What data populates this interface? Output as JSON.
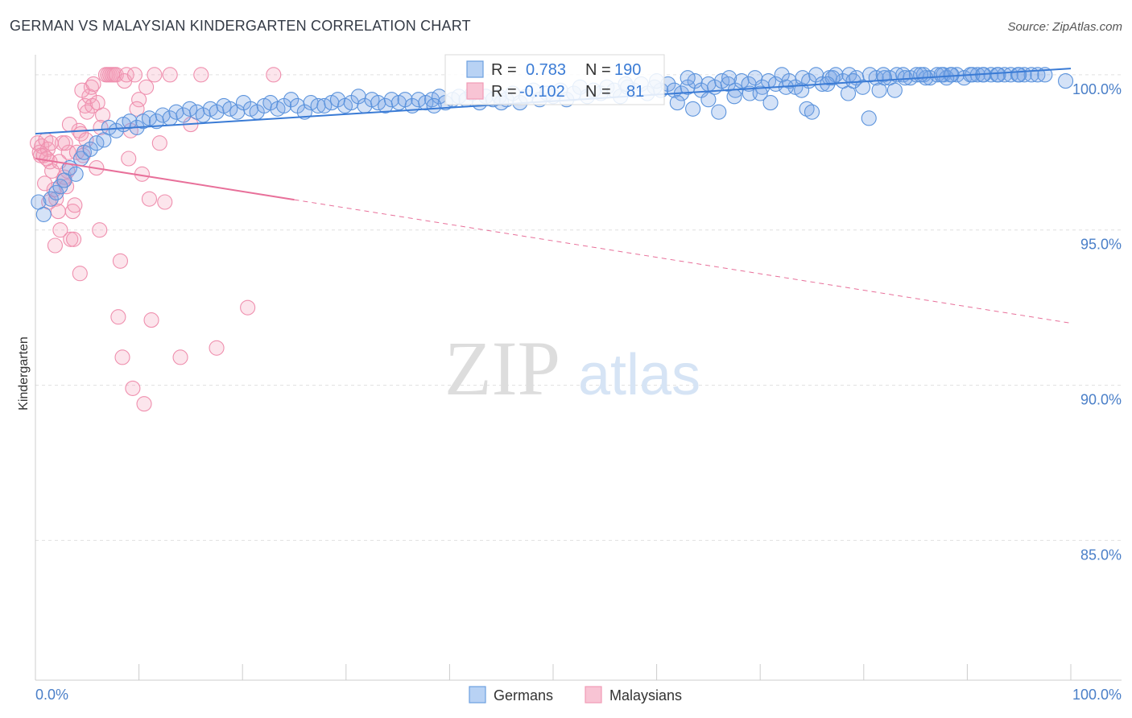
{
  "title": "GERMAN VS MALAYSIAN KINDERGARTEN CORRELATION CHART",
  "source": "Source: ZipAtlas.com",
  "watermark": {
    "zip": "ZIP",
    "atlas": "atlas"
  },
  "legend": {
    "r_label": "R =",
    "n_label": "N =",
    "germans": {
      "r": "0.783",
      "n": "190"
    },
    "malaysians": {
      "r": "-0.102",
      "n": "81"
    }
  },
  "bottom_legend": [
    "Germans",
    "Malaysians"
  ],
  "colors": {
    "blue": "#6b9fe0",
    "blue_line": "#3a7bd5",
    "pink": "#f19bb6",
    "pink_line": "#e8709a",
    "grid": "#e0e0e0"
  },
  "chart_data": {
    "type": "scatter",
    "title": "GERMAN VS MALAYSIAN KINDERGARTEN CORRELATION CHART",
    "xlabel": "",
    "ylabel": "Kindergarten",
    "xlim": [
      0,
      100
    ],
    "ylim": [
      80.5,
      100.8
    ],
    "x_tick_labels": [
      "0.0%",
      "100.0%"
    ],
    "y_ticks": [
      85,
      90,
      95,
      100
    ],
    "y_tick_labels": [
      "85.0%",
      "90.0%",
      "95.0%",
      "100.0%"
    ],
    "series": [
      {
        "name": "Germans",
        "trend": {
          "x": [
            0,
            100
          ],
          "y": [
            98.1,
            100.2
          ],
          "dashed_from": null
        },
        "points": [
          [
            0.3,
            95.9
          ],
          [
            0.8,
            95.5
          ],
          [
            1.5,
            96.0
          ],
          [
            2.0,
            96.2
          ],
          [
            2.4,
            96.4
          ],
          [
            2.8,
            96.6
          ],
          [
            3.3,
            97.0
          ],
          [
            3.9,
            96.8
          ],
          [
            4.4,
            97.3
          ],
          [
            4.7,
            97.5
          ],
          [
            5.3,
            97.6
          ],
          [
            5.9,
            97.8
          ],
          [
            6.6,
            97.9
          ],
          [
            7.1,
            98.3
          ],
          [
            7.8,
            98.2
          ],
          [
            8.5,
            98.4
          ],
          [
            9.1,
            98.5
          ],
          [
            9.8,
            98.3
          ],
          [
            10.4,
            98.5
          ],
          [
            11.0,
            98.6
          ],
          [
            11.7,
            98.5
          ],
          [
            12.3,
            98.7
          ],
          [
            13.0,
            98.6
          ],
          [
            13.6,
            98.8
          ],
          [
            14.3,
            98.7
          ],
          [
            14.9,
            98.9
          ],
          [
            15.6,
            98.8
          ],
          [
            16.2,
            98.7
          ],
          [
            16.9,
            98.9
          ],
          [
            17.5,
            98.8
          ],
          [
            18.2,
            99.0
          ],
          [
            18.8,
            98.9
          ],
          [
            19.5,
            98.8
          ],
          [
            20.1,
            99.1
          ],
          [
            20.8,
            98.9
          ],
          [
            21.4,
            98.8
          ],
          [
            22.1,
            99.0
          ],
          [
            22.7,
            99.1
          ],
          [
            23.4,
            98.9
          ],
          [
            24.0,
            99.0
          ],
          [
            24.7,
            99.2
          ],
          [
            25.3,
            99.0
          ],
          [
            26.0,
            98.8
          ],
          [
            26.6,
            99.1
          ],
          [
            27.3,
            99.0
          ],
          [
            27.9,
            99.0
          ],
          [
            28.6,
            99.1
          ],
          [
            29.2,
            99.2
          ],
          [
            29.9,
            99.0
          ],
          [
            30.5,
            99.1
          ],
          [
            31.2,
            99.3
          ],
          [
            31.8,
            99.0
          ],
          [
            32.5,
            99.2
          ],
          [
            33.1,
            99.1
          ],
          [
            33.8,
            99.0
          ],
          [
            34.4,
            99.2
          ],
          [
            35.1,
            99.1
          ],
          [
            35.7,
            99.2
          ],
          [
            36.4,
            99.0
          ],
          [
            37.0,
            99.2
          ],
          [
            37.7,
            99.1
          ],
          [
            38.3,
            99.2
          ],
          [
            39.0,
            99.3
          ],
          [
            39.6,
            99.1
          ],
          [
            40.3,
            99.2
          ],
          [
            40.9,
            99.3
          ],
          [
            41.6,
            99.2
          ],
          [
            42.2,
            99.4
          ],
          [
            42.9,
            99.1
          ],
          [
            43.5,
            99.3
          ],
          [
            44.2,
            99.2
          ],
          [
            44.8,
            99.3
          ],
          [
            45.5,
            99.2
          ],
          [
            46.1,
            99.4
          ],
          [
            46.8,
            99.1
          ],
          [
            47.4,
            99.3
          ],
          [
            48.1,
            99.5
          ],
          [
            48.7,
            99.2
          ],
          [
            49.4,
            99.4
          ],
          [
            50.0,
            99.3
          ],
          [
            50.7,
            99.5
          ],
          [
            51.3,
            99.2
          ],
          [
            52.0,
            99.4
          ],
          [
            52.6,
            99.6
          ],
          [
            53.3,
            99.3
          ],
          [
            53.9,
            99.5
          ],
          [
            54.6,
            99.4
          ],
          [
            55.2,
            99.6
          ],
          [
            55.9,
            99.5
          ],
          [
            56.5,
            99.3
          ],
          [
            57.2,
            99.6
          ],
          [
            57.8,
            99.5
          ],
          [
            58.5,
            99.7
          ],
          [
            59.1,
            99.4
          ],
          [
            59.8,
            99.6
          ],
          [
            60.4,
            99.5
          ],
          [
            61.1,
            99.7
          ],
          [
            61.7,
            99.5
          ],
          [
            62.4,
            99.4
          ],
          [
            63.0,
            99.6
          ],
          [
            63.7,
            99.8
          ],
          [
            64.3,
            99.5
          ],
          [
            65.0,
            99.7
          ],
          [
            65.6,
            99.6
          ],
          [
            66.3,
            99.8
          ],
          [
            66.9,
            99.7
          ],
          [
            67.6,
            99.5
          ],
          [
            68.2,
            99.8
          ],
          [
            68.9,
            99.7
          ],
          [
            69.5,
            99.9
          ],
          [
            70.2,
            99.6
          ],
          [
            70.8,
            99.8
          ],
          [
            71.5,
            99.7
          ],
          [
            72.1,
            100.0
          ],
          [
            72.8,
            99.8
          ],
          [
            73.4,
            99.6
          ],
          [
            74.1,
            99.9
          ],
          [
            74.7,
            99.8
          ],
          [
            75.4,
            100.0
          ],
          [
            76.0,
            99.7
          ],
          [
            76.7,
            99.9
          ],
          [
            77.3,
            100.0
          ],
          [
            78.0,
            99.8
          ],
          [
            78.6,
            100.0
          ],
          [
            79.3,
            99.9
          ],
          [
            79.9,
            99.6
          ],
          [
            80.6,
            100.0
          ],
          [
            81.2,
            99.9
          ],
          [
            81.9,
            100.0
          ],
          [
            82.5,
            99.9
          ],
          [
            83.2,
            100.0
          ],
          [
            83.8,
            100.0
          ],
          [
            84.5,
            99.9
          ],
          [
            85.1,
            100.0
          ],
          [
            85.8,
            100.0
          ],
          [
            86.4,
            99.9
          ],
          [
            87.1,
            100.0
          ],
          [
            87.7,
            100.0
          ],
          [
            88.4,
            100.0
          ],
          [
            89.0,
            100.0
          ],
          [
            89.7,
            99.9
          ],
          [
            90.3,
            100.0
          ],
          [
            91.0,
            100.0
          ],
          [
            91.6,
            100.0
          ],
          [
            92.3,
            100.0
          ],
          [
            92.9,
            100.0
          ],
          [
            93.6,
            100.0
          ],
          [
            94.2,
            100.0
          ],
          [
            94.9,
            100.0
          ],
          [
            95.5,
            100.0
          ],
          [
            96.2,
            100.0
          ],
          [
            96.8,
            100.0
          ],
          [
            38.5,
            99.0
          ],
          [
            45.0,
            99.1
          ],
          [
            62.0,
            99.1
          ],
          [
            63.5,
            98.9
          ],
          [
            66.0,
            98.8
          ],
          [
            71.0,
            99.1
          ],
          [
            74.5,
            98.9
          ],
          [
            75.0,
            98.8
          ],
          [
            78.5,
            99.4
          ],
          [
            80.5,
            98.6
          ],
          [
            81.5,
            99.5
          ],
          [
            83.0,
            99.5
          ],
          [
            86.0,
            99.9
          ],
          [
            88.0,
            99.9
          ],
          [
            90.5,
            100.0
          ],
          [
            93.0,
            100.0
          ],
          [
            97.5,
            100.0
          ],
          [
            99.5,
            99.8
          ],
          [
            57.0,
            99.7
          ],
          [
            60.0,
            99.8
          ],
          [
            63.0,
            99.9
          ],
          [
            67.0,
            99.9
          ],
          [
            69.0,
            99.4
          ],
          [
            74.0,
            99.5
          ],
          [
            77.0,
            99.9
          ],
          [
            84.0,
            99.9
          ],
          [
            88.5,
            100.0
          ],
          [
            91.5,
            100.0
          ],
          [
            95.0,
            100.0
          ],
          [
            65.0,
            99.2
          ],
          [
            67.5,
            99.3
          ],
          [
            70.0,
            99.4
          ],
          [
            72.5,
            99.6
          ],
          [
            76.5,
            99.7
          ],
          [
            79.0,
            99.8
          ],
          [
            82.0,
            99.9
          ],
          [
            85.5,
            100.0
          ],
          [
            87.5,
            100.0
          ]
        ]
      },
      {
        "name": "Malaysians",
        "trend": {
          "x": [
            0,
            100
          ],
          "y": [
            97.3,
            92.0
          ],
          "solid_until": 25
        },
        "points": [
          [
            0.2,
            97.8
          ],
          [
            0.4,
            97.5
          ],
          [
            0.6,
            97.7
          ],
          [
            0.8,
            97.4
          ],
          [
            1.0,
            97.9
          ],
          [
            1.2,
            97.6
          ],
          [
            1.4,
            97.2
          ],
          [
            1.6,
            96.9
          ],
          [
            1.8,
            96.3
          ],
          [
            2.0,
            96.0
          ],
          [
            2.2,
            95.6
          ],
          [
            2.4,
            95.0
          ],
          [
            2.6,
            97.8
          ],
          [
            2.8,
            96.7
          ],
          [
            3.0,
            96.4
          ],
          [
            3.2,
            97.5
          ],
          [
            3.4,
            94.7
          ],
          [
            3.6,
            95.6
          ],
          [
            3.8,
            95.8
          ],
          [
            4.0,
            97.5
          ],
          [
            4.2,
            98.2
          ],
          [
            4.4,
            98.1
          ],
          [
            4.6,
            97.4
          ],
          [
            4.8,
            99.0
          ],
          [
            5.0,
            98.8
          ],
          [
            5.2,
            99.3
          ],
          [
            5.4,
            99.6
          ],
          [
            5.6,
            99.7
          ],
          [
            5.9,
            97.0
          ],
          [
            6.2,
            95.0
          ],
          [
            6.5,
            98.7
          ],
          [
            6.8,
            100.0
          ],
          [
            7.0,
            100.0
          ],
          [
            7.2,
            100.0
          ],
          [
            7.4,
            100.0
          ],
          [
            7.6,
            100.0
          ],
          [
            7.8,
            100.0
          ],
          [
            8.0,
            92.2
          ],
          [
            8.2,
            94.0
          ],
          [
            8.4,
            90.9
          ],
          [
            8.6,
            99.8
          ],
          [
            8.8,
            100.0
          ],
          [
            9.0,
            97.3
          ],
          [
            9.2,
            98.2
          ],
          [
            9.4,
            89.9
          ],
          [
            9.6,
            100.0
          ],
          [
            10.0,
            99.2
          ],
          [
            10.3,
            96.8
          ],
          [
            10.5,
            89.4
          ],
          [
            10.7,
            99.6
          ],
          [
            11.0,
            96.0
          ],
          [
            11.2,
            92.1
          ],
          [
            11.5,
            100.0
          ],
          [
            12.0,
            97.8
          ],
          [
            12.5,
            95.9
          ],
          [
            13.0,
            100.0
          ],
          [
            14.0,
            90.9
          ],
          [
            15.0,
            98.4
          ],
          [
            16.0,
            100.0
          ],
          [
            17.5,
            91.2
          ],
          [
            20.5,
            92.5
          ],
          [
            23.0,
            100.0
          ],
          [
            0.5,
            97.4
          ],
          [
            1.3,
            95.9
          ],
          [
            2.9,
            97.8
          ],
          [
            3.1,
            96.9
          ],
          [
            3.7,
            94.7
          ],
          [
            4.3,
            93.6
          ],
          [
            4.9,
            97.9
          ],
          [
            5.5,
            99.0
          ],
          [
            6.0,
            99.1
          ],
          [
            6.3,
            98.3
          ],
          [
            1.1,
            97.3
          ],
          [
            1.9,
            94.5
          ],
          [
            2.3,
            97.2
          ],
          [
            2.7,
            96.6
          ],
          [
            0.9,
            96.5
          ],
          [
            1.5,
            97.8
          ],
          [
            3.3,
            98.4
          ],
          [
            4.5,
            99.5
          ],
          [
            9.8,
            98.9
          ]
        ]
      }
    ]
  }
}
